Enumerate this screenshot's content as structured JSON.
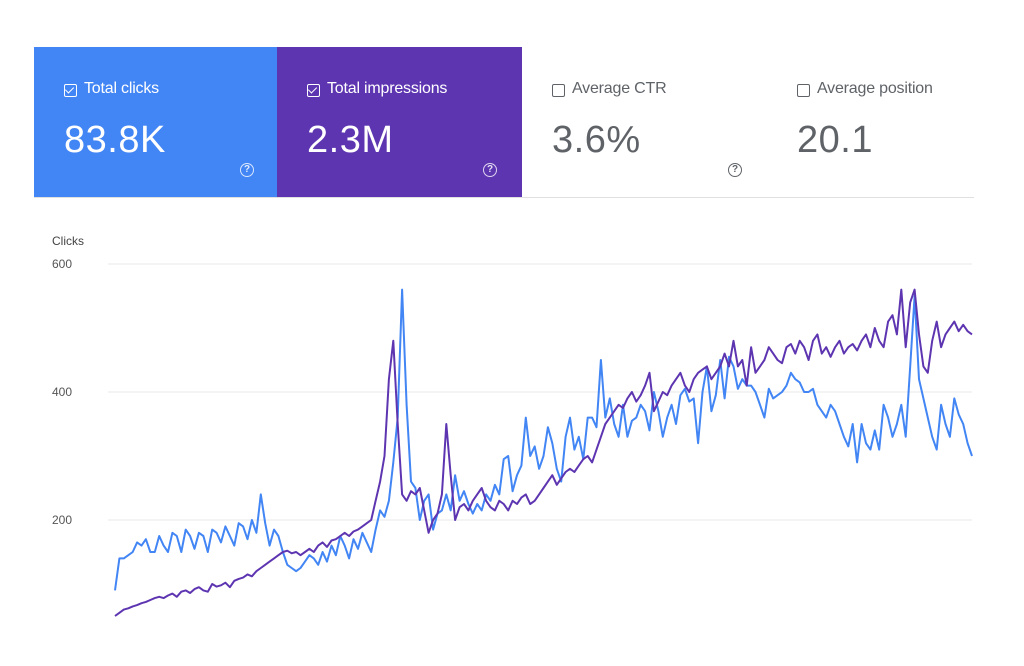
{
  "cards": [
    {
      "label": "Total clicks",
      "value": "83.8K",
      "selected": true,
      "color": "#4285F4"
    },
    {
      "label": "Total impressions",
      "value": "2.3M",
      "selected": true,
      "color": "#5E35B1"
    },
    {
      "label": "Average CTR",
      "value": "3.6%",
      "selected": false
    },
    {
      "label": "Average position",
      "value": "20.1",
      "selected": false
    }
  ],
  "help_glyph": "?",
  "chart_data": {
    "type": "line",
    "ylabel": "Clicks",
    "ylim": [
      20,
      600
    ],
    "y_ticks": [
      200,
      400,
      600
    ],
    "grid": true,
    "series": [
      {
        "color": "#4285F4",
        "values": [
          90,
          140,
          140,
          145,
          150,
          165,
          160,
          170,
          150,
          150,
          175,
          160,
          150,
          180,
          175,
          150,
          185,
          175,
          155,
          180,
          175,
          150,
          185,
          180,
          165,
          190,
          175,
          160,
          195,
          190,
          170,
          200,
          180,
          240,
          195,
          160,
          185,
          175,
          150,
          130,
          125,
          120,
          125,
          135,
          145,
          140,
          130,
          150,
          135,
          160,
          145,
          175,
          160,
          140,
          170,
          155,
          180,
          165,
          150,
          185,
          215,
          205,
          230,
          290,
          360,
          560,
          380,
          260,
          250,
          200,
          230,
          240,
          185,
          210,
          215,
          240,
          215,
          270,
          230,
          245,
          225,
          210,
          225,
          215,
          240,
          230,
          255,
          240,
          295,
          300,
          245,
          270,
          285,
          360,
          300,
          315,
          280,
          300,
          345,
          320,
          280,
          260,
          330,
          360,
          310,
          330,
          295,
          360,
          360,
          345,
          450,
          360,
          390,
          350,
          330,
          380,
          330,
          355,
          360,
          380,
          370,
          340,
          400,
          370,
          330,
          360,
          380,
          350,
          395,
          405,
          385,
          390,
          320,
          400,
          440,
          370,
          395,
          450,
          390,
          455,
          440,
          405,
          420,
          410,
          410,
          400,
          380,
          360,
          405,
          390,
          395,
          400,
          410,
          430,
          420,
          415,
          400,
          400,
          405,
          380,
          370,
          360,
          380,
          370,
          350,
          330,
          315,
          350,
          290,
          350,
          320,
          310,
          340,
          310,
          380,
          360,
          330,
          350,
          380,
          330,
          440,
          550,
          420,
          390,
          360,
          330,
          310,
          380,
          350,
          330,
          390,
          365,
          350,
          320,
          300
        ]
      },
      {
        "color": "#5E35B1",
        "values": [
          50,
          55,
          60,
          62,
          65,
          67,
          70,
          72,
          75,
          78,
          80,
          78,
          82,
          85,
          80,
          88,
          90,
          86,
          92,
          95,
          90,
          88,
          100,
          96,
          98,
          102,
          95,
          105,
          108,
          110,
          115,
          112,
          120,
          125,
          130,
          135,
          140,
          145,
          150,
          152,
          148,
          150,
          145,
          150,
          155,
          150,
          160,
          165,
          158,
          168,
          170,
          175,
          180,
          175,
          182,
          185,
          190,
          195,
          200,
          230,
          260,
          300,
          420,
          480,
          350,
          240,
          230,
          245,
          240,
          250,
          215,
          180,
          200,
          210,
          240,
          350,
          270,
          200,
          220,
          225,
          215,
          230,
          240,
          250,
          230,
          220,
          215,
          230,
          225,
          215,
          230,
          225,
          235,
          240,
          225,
          230,
          240,
          250,
          260,
          270,
          255,
          265,
          275,
          280,
          275,
          285,
          295,
          300,
          290,
          310,
          330,
          350,
          360,
          370,
          380,
          375,
          390,
          400,
          385,
          395,
          410,
          430,
          370,
          385,
          400,
          395,
          410,
          420,
          430,
          410,
          400,
          420,
          430,
          435,
          440,
          420,
          430,
          440,
          460,
          440,
          480,
          440,
          450,
          410,
          470,
          430,
          440,
          450,
          470,
          460,
          450,
          445,
          470,
          475,
          460,
          480,
          470,
          450,
          480,
          490,
          460,
          470,
          455,
          470,
          480,
          460,
          470,
          475,
          465,
          480,
          490,
          470,
          500,
          480,
          470,
          510,
          520,
          490,
          560,
          470,
          540,
          560,
          490,
          440,
          430,
          480,
          510,
          470,
          490,
          500,
          510,
          495,
          505,
          495,
          490
        ]
      }
    ]
  }
}
